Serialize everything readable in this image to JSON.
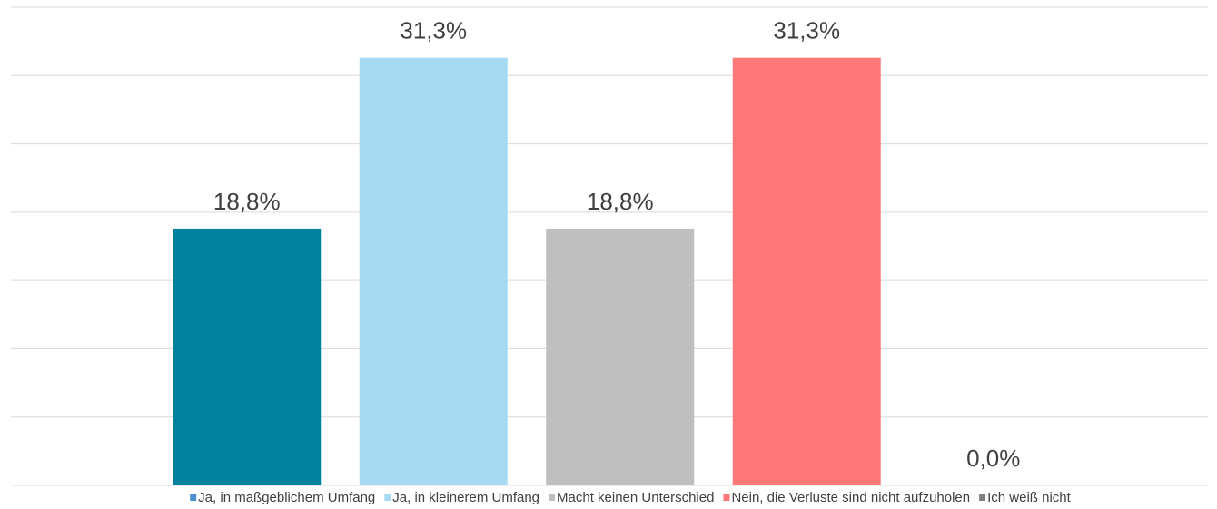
{
  "chart_data": {
    "type": "bar",
    "categories": [
      "Ja, in maßgeblichem Umfang",
      "Ja, in kleinerem Umfang",
      "Macht keinen Unterschied",
      "Nein, die Verluste sind nicht aufzuholen",
      "Ich weiß nicht"
    ],
    "values": [
      18.8,
      31.3,
      18.8,
      31.3,
      0.0
    ],
    "value_labels": [
      "18,8%",
      "31,3%",
      "18,8%",
      "31,3%",
      "0,0%"
    ],
    "colors": [
      "#00829f",
      "#a6d9f2",
      "#bfbfbf",
      "#ff7878",
      "#7f7f7f"
    ],
    "legend_colors": [
      "#4e8fcf",
      "#a6d9f2",
      "#bfbfbf",
      "#ff7878",
      "#7f7f7f"
    ],
    "ylim": [
      0,
      35
    ],
    "yticks": [
      0,
      5,
      10,
      15,
      20,
      25,
      30,
      35
    ],
    "grid": true,
    "legend": "bottom"
  }
}
